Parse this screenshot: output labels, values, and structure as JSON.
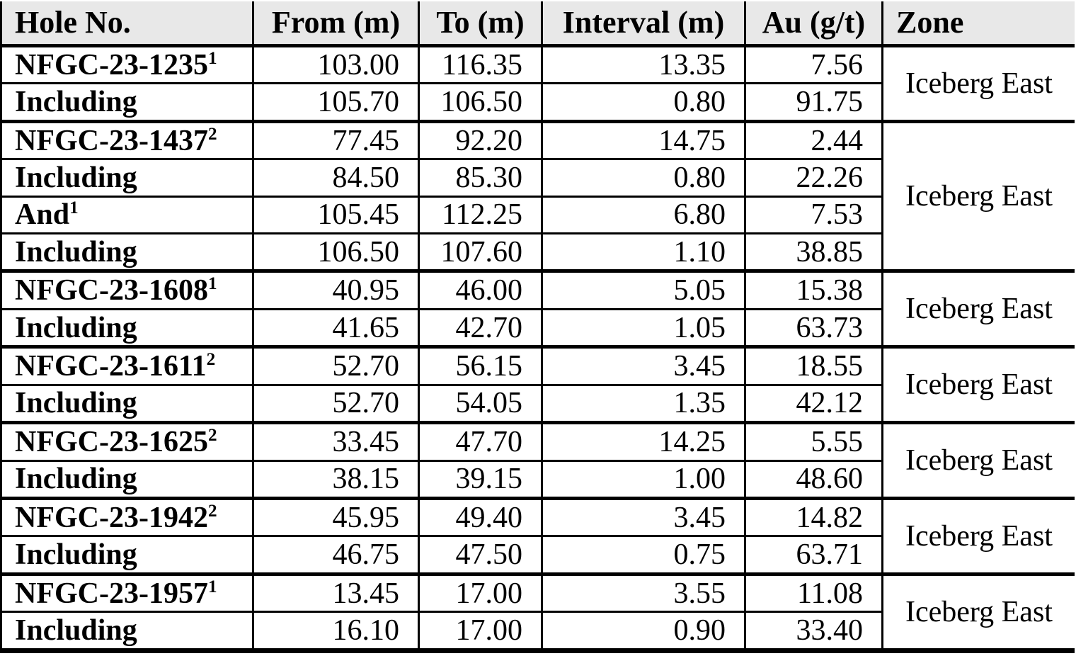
{
  "styles": {
    "header_bg": "#e8e8e8",
    "border_color": "#000000",
    "text_color": "#000000"
  },
  "table": {
    "columns": [
      "Hole No.",
      "From (m)",
      "To (m)",
      "Interval (m)",
      "Au (g/t)",
      "Zone"
    ],
    "groups": [
      {
        "zone": "Iceberg East",
        "rows": [
          {
            "label": "NFGC-23-1235",
            "sup": "1",
            "from": "103.00",
            "to": "116.35",
            "interval": "13.35",
            "au": "7.56"
          },
          {
            "label": "Including",
            "sup": "",
            "from": "105.70",
            "to": "106.50",
            "interval": "0.80",
            "au": "91.75"
          }
        ]
      },
      {
        "zone": "Iceberg East",
        "rows": [
          {
            "label": "NFGC-23-1437",
            "sup": "2",
            "from": "77.45",
            "to": "92.20",
            "interval": "14.75",
            "au": "2.44"
          },
          {
            "label": "Including",
            "sup": "",
            "from": "84.50",
            "to": "85.30",
            "interval": "0.80",
            "au": "22.26"
          },
          {
            "label": "And",
            "sup": "1",
            "from": "105.45",
            "to": "112.25",
            "interval": "6.80",
            "au": "7.53"
          },
          {
            "label": "Including",
            "sup": "",
            "from": "106.50",
            "to": "107.60",
            "interval": "1.10",
            "au": "38.85"
          }
        ]
      },
      {
        "zone": "Iceberg East",
        "rows": [
          {
            "label": "NFGC-23-1608",
            "sup": "1",
            "from": "40.95",
            "to": "46.00",
            "interval": "5.05",
            "au": "15.38"
          },
          {
            "label": "Including",
            "sup": "",
            "from": "41.65",
            "to": "42.70",
            "interval": "1.05",
            "au": "63.73"
          }
        ]
      },
      {
        "zone": "Iceberg East",
        "rows": [
          {
            "label": "NFGC-23-1611",
            "sup": "2",
            "from": "52.70",
            "to": "56.15",
            "interval": "3.45",
            "au": "18.55"
          },
          {
            "label": "Including",
            "sup": "",
            "from": "52.70",
            "to": "54.05",
            "interval": "1.35",
            "au": "42.12"
          }
        ]
      },
      {
        "zone": "Iceberg East",
        "rows": [
          {
            "label": "NFGC-23-1625",
            "sup": "2",
            "from": "33.45",
            "to": "47.70",
            "interval": "14.25",
            "au": "5.55"
          },
          {
            "label": "Including",
            "sup": "",
            "from": "38.15",
            "to": "39.15",
            "interval": "1.00",
            "au": "48.60"
          }
        ]
      },
      {
        "zone": "Iceberg East",
        "rows": [
          {
            "label": "NFGC-23-1942",
            "sup": "2",
            "from": "45.95",
            "to": "49.40",
            "interval": "3.45",
            "au": "14.82"
          },
          {
            "label": "Including",
            "sup": "",
            "from": "46.75",
            "to": "47.50",
            "interval": "0.75",
            "au": "63.71"
          }
        ]
      },
      {
        "zone": "Iceberg East",
        "rows": [
          {
            "label": "NFGC-23-1957",
            "sup": "1",
            "from": "13.45",
            "to": "17.00",
            "interval": "3.55",
            "au": "11.08"
          },
          {
            "label": "Including",
            "sup": "",
            "from": "16.10",
            "to": "17.00",
            "interval": "0.90",
            "au": "33.40"
          }
        ]
      }
    ]
  }
}
